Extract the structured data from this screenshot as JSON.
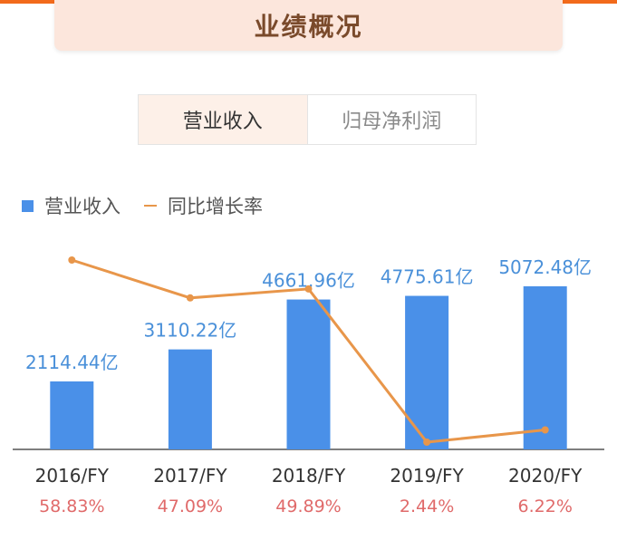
{
  "header": {
    "title": "业绩概况"
  },
  "tabs": [
    {
      "label": "营业收入",
      "active": true
    },
    {
      "label": "归母净利润",
      "active": false
    }
  ],
  "legend": {
    "bar_label": "营业收入",
    "line_label": "同比增长率"
  },
  "colors": {
    "bar": "#4a90e8",
    "line": "#e8964a",
    "growth_text": "#e06a6a",
    "accent": "#f26a1b"
  },
  "chart_data": {
    "type": "bar",
    "categories": [
      "2016/FY",
      "2017/FY",
      "2018/FY",
      "2019/FY",
      "2020/FY"
    ],
    "series": [
      {
        "type": "bar",
        "values": [
          2114.44,
          3110.22,
          4661.96,
          4775.61,
          5072.48
        ],
        "data_labels": [
          "2114.44亿",
          "3110.22亿",
          "4661.96亿",
          "4775.61亿",
          "5072.48亿"
        ]
      },
      {
        "type": "line",
        "values": [
          58.83,
          47.09,
          49.89,
          2.44,
          6.22
        ],
        "data_labels": [
          "58.83%",
          "47.09%",
          "49.89%",
          "2.44%",
          "6.22%"
        ]
      }
    ]
  }
}
